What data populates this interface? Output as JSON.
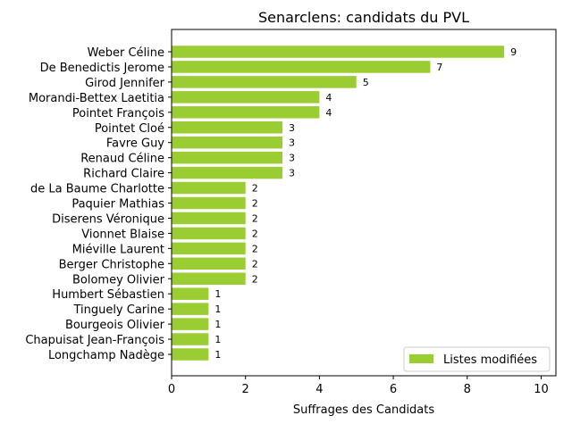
{
  "chart_data": {
    "type": "bar",
    "orientation": "horizontal",
    "title": "Senarclens: candidats du PVL",
    "xlabel": "Suffrages des Candidats",
    "ylabel": "",
    "xlim": [
      0,
      10.4
    ],
    "xticks": [
      0,
      2,
      4,
      6,
      8,
      10
    ],
    "legend": {
      "position": "lower-right",
      "entries": [
        "Listes modifiées"
      ]
    },
    "grid": false,
    "bar_color": "#9acd32",
    "categories": [
      "Weber Céline",
      "De Benedictis Jerome",
      "Girod Jennifer",
      "Morandi-Bettex Laetitia",
      "Pointet François",
      "Pointet Cloé",
      "Favre Guy",
      "Renaud Céline",
      "Richard Claire",
      "de La Baume Charlotte",
      "Paquier Mathias",
      "Diserens Véronique",
      "Vionnet Blaise",
      "Miéville Laurent",
      "Berger Christophe",
      "Bolomey Olivier",
      "Humbert Sébastien",
      "Tinguely Carine",
      "Bourgeois Olivier",
      "Chapuisat Jean-François",
      "Longchamp Nadège"
    ],
    "series": [
      {
        "name": "Listes modifiées",
        "values": [
          9,
          7,
          5,
          4,
          4,
          3,
          3,
          3,
          3,
          2,
          2,
          2,
          2,
          2,
          2,
          2,
          1,
          1,
          1,
          1,
          1
        ]
      }
    ]
  }
}
